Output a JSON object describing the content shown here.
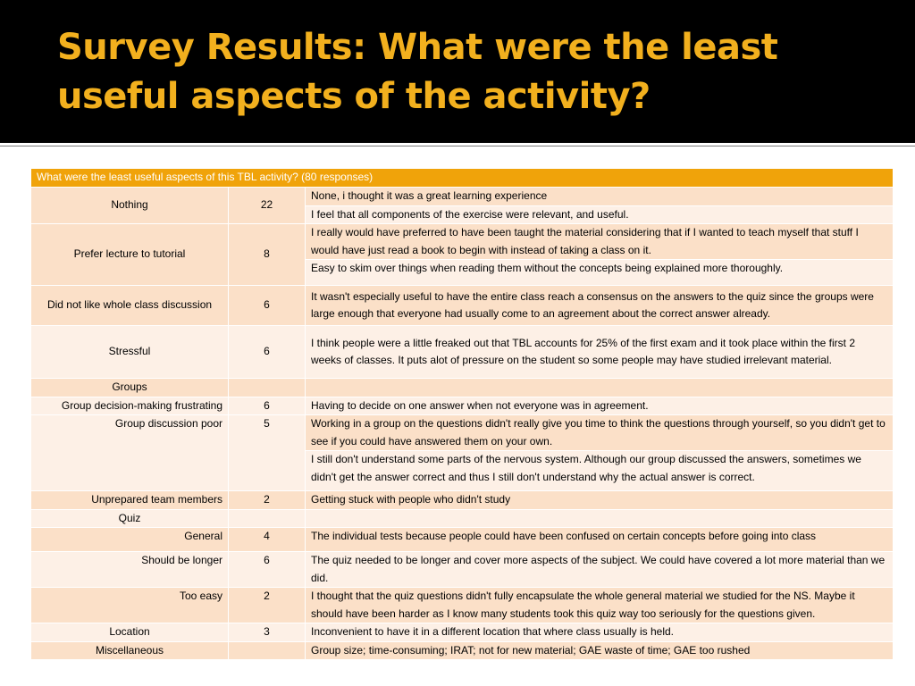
{
  "slide": {
    "title": "Survey Results: What were the least useful aspects of the activity?"
  },
  "table": {
    "header": "What were the least useful aspects of this TBL activity?  (80 responses)",
    "rows": [
      {
        "category": "Nothing",
        "count": "22",
        "comments": [
          "None, i thought it was a great learning experience",
          "I feel that all components of the exercise were relevant, and useful."
        ]
      },
      {
        "category": "Prefer lecture to tutorial",
        "count": "8",
        "comments": [
          "I really would have preferred to have been taught the material considering that if I wanted to teach myself that stuff I would have just read a book to begin with instead of taking a class on it.",
          "Easy to skim over things when reading them without the concepts being explained more thoroughly."
        ]
      },
      {
        "category": "Did not like whole class discussion",
        "count": "6",
        "comments": [
          "It wasn't especially useful to have the entire class reach a consensus on the answers to the quiz since the groups were large enough that everyone had usually come to an agreement about the correct answer already."
        ]
      },
      {
        "category": "Stressful",
        "count": "6",
        "comments": [
          "I think people were a little freaked out that TBL accounts for 25% of the first exam and it took place within the first 2 weeks of classes. It puts alot of pressure on the student so some people may have studied irrelevant material."
        ]
      },
      {
        "category": "Groups",
        "count": "",
        "comments": [
          ""
        ]
      },
      {
        "category": "Group decision-making frustrating",
        "count": "6",
        "comments": [
          "Having to decide on one answer when not everyone was in agreement."
        ]
      },
      {
        "category": "Group discussion poor",
        "count": "5",
        "comments": [
          "Working in a group on the questions didn't really give you time to think the questions through yourself, so you didn't get to see if you could have answered them on your own.",
          "I still don't understand some parts of the nervous system. Although our group discussed the answers, sometimes we didn't get the answer correct and thus I still don't understand why the actual answer is correct."
        ]
      },
      {
        "category": "Unprepared team members",
        "count": "2",
        "comments": [
          "Getting stuck with people who didn't study"
        ]
      },
      {
        "category": "Quiz",
        "count": "",
        "comments": [
          ""
        ]
      },
      {
        "category": "General",
        "count": "4",
        "comments": [
          "The individual tests because people could have been confused on certain concepts before going into class"
        ]
      },
      {
        "category": "Should be longer",
        "count": "6",
        "comments": [
          "The quiz needed to be longer and cover more aspects of the subject. We could have covered a lot more material than we did."
        ]
      },
      {
        "category": "Too easy",
        "count": "2",
        "comments": [
          "I thought that the quiz questions didn't fully encapsulate the whole general material we studied for the NS. Maybe it should have been harder as I know many students took this quiz way too seriously for the questions given."
        ]
      },
      {
        "category": "Location",
        "count": "3",
        "comments": [
          "Inconvenient to have it in a different location that where class usually is held."
        ]
      },
      {
        "category": "Miscellaneous",
        "count": "",
        "comments": [
          "Group size; time-consuming; IRAT; not for new material; GAE waste of time; GAE too rushed"
        ]
      }
    ]
  },
  "colors": {
    "banner": "#000000",
    "title": "#f2b01e",
    "header": "#f0a30a",
    "row_dark": "#fbe0c8",
    "row_light": "#fdf0e6"
  }
}
